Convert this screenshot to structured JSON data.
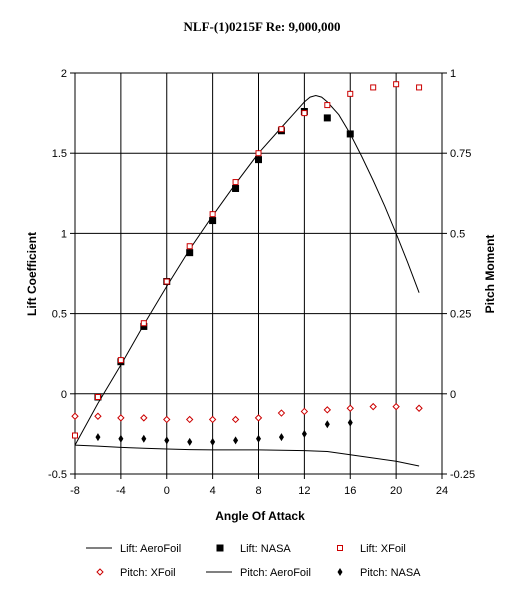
{
  "chart_data": {
    "type": "scatter",
    "title": "NLF-(1)0215F Re: 9,000,000",
    "xlabel": "Angle Of Attack",
    "ylabel_left": "Lift Coefficient",
    "ylabel_right": "Pitch Moment",
    "xlim": [
      -8,
      24
    ],
    "ylim_left": [
      -0.5,
      2
    ],
    "ylim_right": [
      -0.25,
      1
    ],
    "x_ticks": [
      "-8",
      "-4",
      "0",
      "4",
      "8",
      "12",
      "16",
      "20",
      "24"
    ],
    "y_left_ticks": [
      "-0.5",
      "0",
      "0.5",
      "1",
      "1.5",
      "2"
    ],
    "y_right_ticks": [
      "-0.25",
      "0",
      "0.25",
      "0.5",
      "0.75",
      "1"
    ],
    "grid": true,
    "legend_position": "bottom",
    "series": [
      {
        "name": "Lift: AeroFoil",
        "axis": "left",
        "style": "line",
        "color": "#000000",
        "x": [
          -8,
          -6,
          -4,
          -2,
          0,
          2,
          4,
          6,
          8,
          10,
          11,
          12,
          12.5,
          13,
          13.5,
          14,
          15,
          16,
          17,
          18,
          19,
          20,
          21,
          22
        ],
        "y": [
          -0.32,
          -0.06,
          0.18,
          0.43,
          0.67,
          0.9,
          1.11,
          1.31,
          1.5,
          1.66,
          1.74,
          1.82,
          1.85,
          1.86,
          1.85,
          1.82,
          1.74,
          1.62,
          1.48,
          1.33,
          1.17,
          1.0,
          0.82,
          0.63
        ]
      },
      {
        "name": "Lift: NASA",
        "axis": "left",
        "style": "filled-square",
        "color": "#000000",
        "x": [
          -6,
          -4,
          -2,
          0,
          2,
          4,
          6,
          8,
          10,
          12,
          14,
          16
        ],
        "y": [
          -0.02,
          0.2,
          0.42,
          0.7,
          0.88,
          1.08,
          1.28,
          1.46,
          1.64,
          1.76,
          1.72,
          1.62
        ]
      },
      {
        "name": "Lift: XFoil",
        "axis": "left",
        "style": "open-square",
        "color": "#cc0000",
        "x": [
          -8,
          -6,
          -4,
          -2,
          0,
          2,
          4,
          6,
          8,
          10,
          12,
          14,
          16,
          18,
          20,
          22
        ],
        "y": [
          -0.26,
          -0.02,
          0.21,
          0.44,
          0.7,
          0.92,
          1.12,
          1.32,
          1.5,
          1.65,
          1.75,
          1.8,
          1.87,
          1.91,
          1.93,
          1.91
        ]
      },
      {
        "name": "Pitch: XFoil",
        "axis": "right",
        "style": "open-diamond",
        "color": "#cc0000",
        "x": [
          -8,
          -6,
          -4,
          -2,
          0,
          2,
          4,
          6,
          8,
          10,
          12,
          14,
          16,
          18,
          20,
          22
        ],
        "y": [
          -0.07,
          -0.07,
          -0.075,
          -0.075,
          -0.08,
          -0.08,
          -0.08,
          -0.08,
          -0.075,
          -0.06,
          -0.055,
          -0.05,
          -0.045,
          -0.04,
          -0.04,
          -0.045
        ]
      },
      {
        "name": "Pitch: AeroFoil",
        "axis": "right",
        "style": "line",
        "color": "#000000",
        "x": [
          -8,
          -6,
          -4,
          -2,
          0,
          2,
          4,
          6,
          8,
          10,
          12,
          14,
          16,
          18,
          20,
          22
        ],
        "y": [
          -0.16,
          -0.163,
          -0.167,
          -0.17,
          -0.172,
          -0.174,
          -0.175,
          -0.175,
          -0.175,
          -0.176,
          -0.177,
          -0.18,
          -0.19,
          -0.2,
          -0.21,
          -0.225
        ]
      },
      {
        "name": "Pitch: NASA",
        "axis": "right",
        "style": "filled-diamond",
        "color": "#000000",
        "x": [
          -6,
          -4,
          -2,
          0,
          2,
          4,
          6,
          8,
          10,
          12,
          14,
          16
        ],
        "y": [
          -0.135,
          -0.14,
          -0.14,
          -0.145,
          -0.15,
          -0.15,
          -0.145,
          -0.14,
          -0.135,
          -0.125,
          -0.095,
          -0.09
        ]
      }
    ]
  }
}
